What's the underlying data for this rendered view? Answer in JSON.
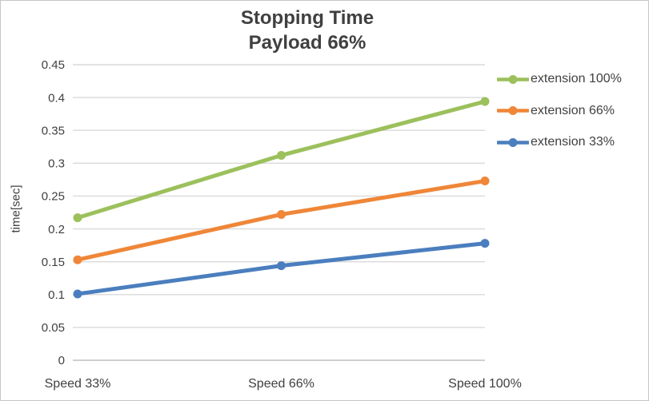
{
  "chart_data": {
    "type": "line",
    "title": "Stopping Time",
    "subtitle": "Payload 66%",
    "ylabel": "time[sec]",
    "xlabel": "",
    "categories": [
      "Speed 33%",
      "Speed 66%",
      "Speed 100%"
    ],
    "series": [
      {
        "name": "extension 100%",
        "color": "#9cc05c",
        "values": [
          0.217,
          0.312,
          0.394
        ]
      },
      {
        "name": "extension 66%",
        "color": "#ef8638",
        "values": [
          0.153,
          0.222,
          0.273
        ]
      },
      {
        "name": "extension 33%",
        "color": "#4b7ebe",
        "values": [
          0.101,
          0.144,
          0.178
        ]
      }
    ],
    "ylim": [
      0,
      0.45
    ],
    "ytick_step": 0.05,
    "ytick_labels": [
      "0",
      "0.05",
      "0.1",
      "0.15",
      "0.2",
      "0.25",
      "0.3",
      "0.35",
      "0.4",
      "0.45"
    ],
    "grid": true,
    "legend_position": "right",
    "marker": "circle",
    "text_color": "#404040",
    "gridline_color": "#d9d9d9",
    "axis_line_color": "#bfbfbf",
    "frame_border_color": "#c6c6c6"
  }
}
